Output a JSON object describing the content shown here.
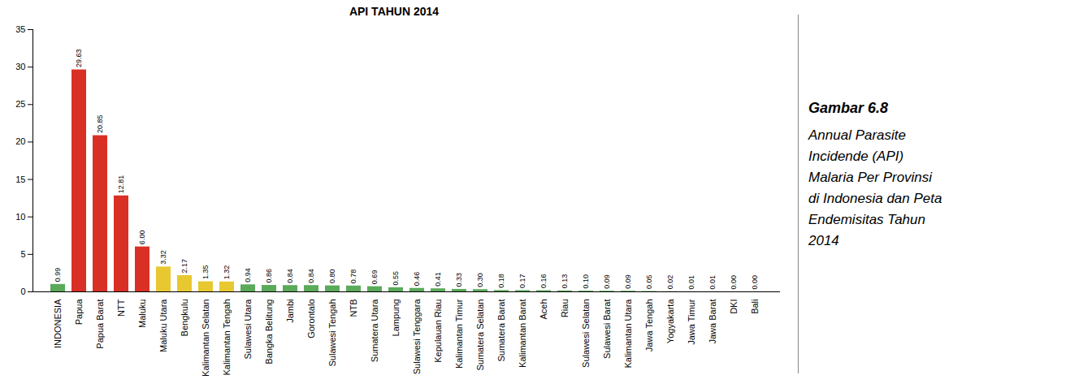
{
  "chart_data": {
    "type": "bar",
    "title": "API TAHUN 2014",
    "categories": [
      "INDONESIA",
      "Papua",
      "Papua Barat",
      "NTT",
      "Maluku",
      "Maluku Utara",
      "Bengkulu",
      "Kalimantan Selatan",
      "Kalimantan Tengah",
      "Sulawesi Utara",
      "Bangka Belitung",
      "Jambi",
      "Gorontalo",
      "Sulawesi Tengah",
      "NTB",
      "Sumatera Utara",
      "Lampung",
      "Sulawesi Tenggara",
      "Kepulauan Riau",
      "Kalimantan Timur",
      "Sumatera Selatan",
      "Sumatera Barat",
      "Kalimantan Barat",
      "Aceh",
      "Riau",
      "Sulawesi Selatan",
      "Sulawesi Barat",
      "Kalimantan Utara",
      "Jawa Tengah",
      "Yogyakarta",
      "Jawa Timur",
      "Jawa Barat",
      "DKI",
      "Bali"
    ],
    "values": [
      0.99,
      29.63,
      20.85,
      12.81,
      6.0,
      3.32,
      2.17,
      1.35,
      1.32,
      0.94,
      0.86,
      0.84,
      0.84,
      0.8,
      0.78,
      0.69,
      0.55,
      0.46,
      0.41,
      0.33,
      0.3,
      0.18,
      0.17,
      0.16,
      0.13,
      0.1,
      0.09,
      0.09,
      0.05,
      0.02,
      0.01,
      0.01,
      0.0,
      0.0
    ],
    "value_labels": [
      "0.99",
      "29.63",
      "20.85",
      "12.81",
      "6.00",
      "3.32",
      "2.17",
      "1.35",
      "1.32",
      "0.94",
      "0.86",
      "0.84",
      "0.84",
      "0.80",
      "0.78",
      "0.69",
      "0.55",
      "0.46",
      "0.41",
      "0.33",
      "0.30",
      "0.18",
      "0.17",
      "0.16",
      "0.13",
      "0.10",
      "0.09",
      "0.09",
      "0.05",
      "0.02",
      "0.01",
      "0.01",
      "0.00",
      "0.00"
    ],
    "colors": [
      "#5aaa5a",
      "#d93025",
      "#d93025",
      "#d93025",
      "#d93025",
      "#e8c830",
      "#e8c830",
      "#e8c830",
      "#e8c830",
      "#5aaa5a",
      "#5aaa5a",
      "#5aaa5a",
      "#5aaa5a",
      "#5aaa5a",
      "#5aaa5a",
      "#5aaa5a",
      "#5aaa5a",
      "#5aaa5a",
      "#5aaa5a",
      "#5aaa5a",
      "#5aaa5a",
      "#5aaa5a",
      "#5aaa5a",
      "#5aaa5a",
      "#5aaa5a",
      "#5aaa5a",
      "#5aaa5a",
      "#5aaa5a",
      "#5aaa5a",
      "#5aaa5a",
      "#5aaa5a",
      "#5aaa5a",
      "#5aaa5a",
      "#5aaa5a"
    ],
    "ylim": [
      0,
      35
    ],
    "yticks": [
      0,
      5,
      10,
      15,
      20,
      25,
      30,
      35
    ],
    "data_labels": true,
    "grid": false,
    "annotations": [
      "Gambar 6.8",
      "Annual Parasite",
      "Incidende (API)",
      "Malaria Per Provinsi",
      "di Indonesia dan Peta",
      "Endemisitas Tahun",
      "2014"
    ]
  }
}
